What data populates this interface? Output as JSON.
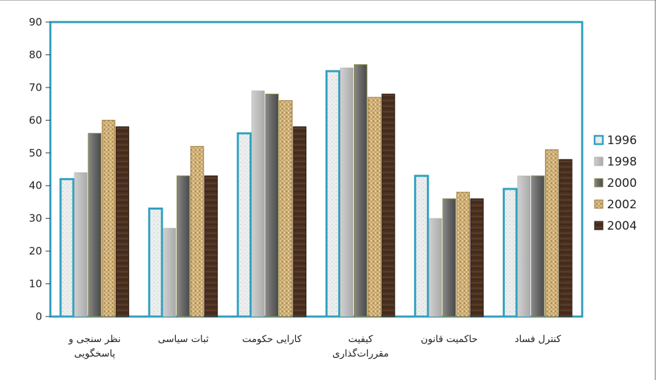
{
  "chart_data": {
    "type": "bar",
    "title": "",
    "xlabel": "",
    "ylabel": "",
    "ylim": [
      0,
      90
    ],
    "yticks": [
      0,
      10,
      20,
      30,
      40,
      50,
      60,
      70,
      80,
      90
    ],
    "grid": false,
    "legend_position": "right",
    "categories": [
      [
        "نظر سنجی و",
        "پاسخگویی"
      ],
      [
        "ثبات سیاسی"
      ],
      [
        "کارایی حکومت"
      ],
      [
        "کیفیت",
        "مقررات‌گذاری"
      ],
      [
        "حاکمیت قانون"
      ],
      [
        "کنترل فساد"
      ]
    ],
    "series": [
      {
        "name": "1996",
        "values": [
          42,
          33,
          56,
          75,
          43,
          39
        ]
      },
      {
        "name": "1998",
        "values": [
          44,
          27,
          69,
          76,
          30,
          43
        ]
      },
      {
        "name": "2000",
        "values": [
          56,
          43,
          68,
          77,
          36,
          43
        ]
      },
      {
        "name": "2002",
        "values": [
          60,
          52,
          66,
          67,
          38,
          51
        ]
      },
      {
        "name": "2004",
        "values": [
          58,
          43,
          58,
          68,
          36,
          48
        ]
      }
    ],
    "colors": {
      "frame": "#2e9dbb",
      "1996_fill": "#eef0f0",
      "1996_border": "#2fa1c1",
      "1998": "#b9b9b9",
      "2000": "#6a6a6a",
      "2002": "#c9a870",
      "2004": "#4b3322"
    }
  }
}
